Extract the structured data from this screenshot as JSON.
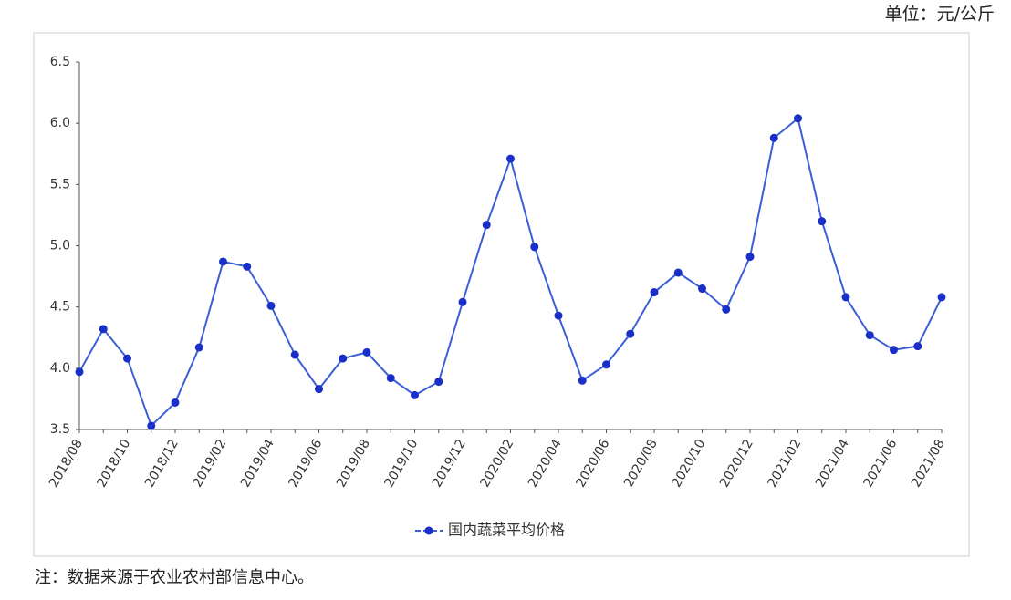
{
  "chart_data": {
    "type": "line",
    "unit_note": "单位：元/公斤",
    "footnote": "注：数据来源于农业农村部信息中心。",
    "categories": [
      "2018/08",
      null,
      "2018/10",
      null,
      "2018/12",
      null,
      "2019/02",
      null,
      "2019/04",
      null,
      "2019/06",
      null,
      "2019/08",
      null,
      "2019/10",
      null,
      "2019/12",
      null,
      "2020/02",
      null,
      "2020/04",
      null,
      "2020/06",
      null,
      "2020/08",
      null,
      "2020/10",
      null,
      "2020/12",
      null,
      "2021/02",
      null,
      "2021/04",
      null,
      "2021/06",
      null,
      "2021/08"
    ],
    "series": [
      {
        "name": "国内蔬菜平均价格",
        "color": "#3a5fd6",
        "values": [
          3.97,
          4.32,
          4.08,
          3.53,
          3.72,
          4.17,
          4.87,
          4.83,
          4.51,
          4.11,
          3.83,
          4.08,
          4.13,
          3.92,
          3.78,
          3.89,
          4.54,
          5.17,
          5.71,
          4.99,
          4.43,
          3.9,
          4.03,
          4.28,
          4.62,
          4.78,
          4.65,
          4.48,
          4.91,
          5.88,
          6.04,
          5.2,
          4.58,
          4.27,
          4.15,
          4.18,
          4.58
        ]
      }
    ],
    "ylim": [
      3.5,
      6.5
    ],
    "yticks": [
      3.5,
      {
        "value": 4,
        "label": "4.0"
      },
      4.5,
      {
        "value": 5,
        "label": "5.0"
      },
      5.5,
      {
        "value": 6,
        "label": "6.0"
      },
      6.5
    ],
    "grid": false
  }
}
